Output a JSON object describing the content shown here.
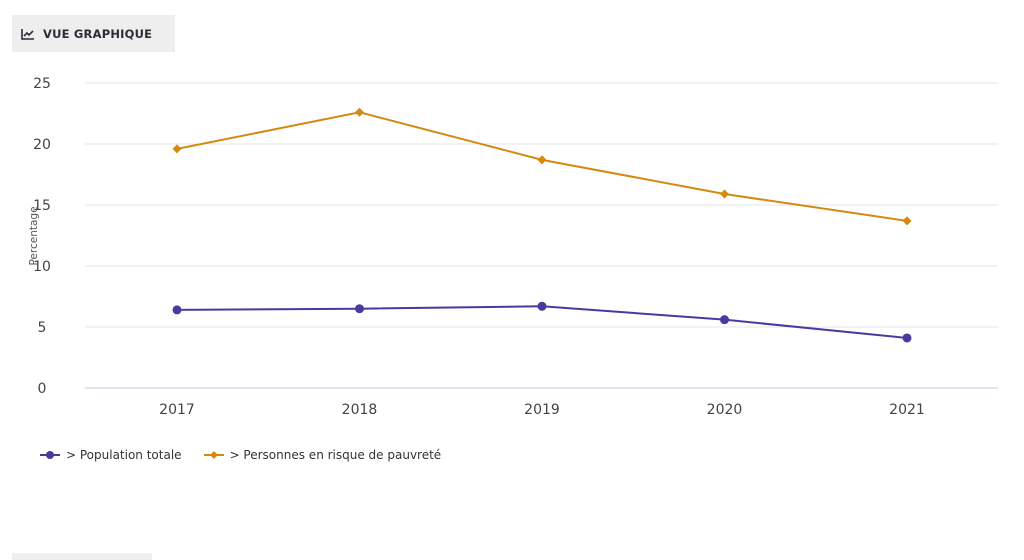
{
  "tab": {
    "label": "VUE GRAPHIQUE",
    "icon": "line-chart-icon"
  },
  "colors": {
    "population": "#4b3a9e",
    "risque": "#d48a0e",
    "grid": "#e6e6ea",
    "axis": "#c9c6e6"
  },
  "chart_data": {
    "type": "line",
    "x": [
      "2017",
      "2018",
      "2019",
      "2020",
      "2021"
    ],
    "ylabel": "Percentage",
    "ylim": [
      0,
      25
    ],
    "yticks": [
      "0",
      "5",
      "10",
      "15",
      "20",
      "25"
    ],
    "grid": true,
    "legend_position": "bottom-left",
    "series": [
      {
        "name": "> Population totale",
        "marker": "circle",
        "values": [
          6.4,
          6.5,
          6.7,
          5.6,
          4.1
        ]
      },
      {
        "name": "> Personnes en risque de pauvreté",
        "marker": "diamond",
        "values": [
          19.6,
          22.6,
          18.7,
          15.9,
          13.7
        ]
      }
    ]
  }
}
